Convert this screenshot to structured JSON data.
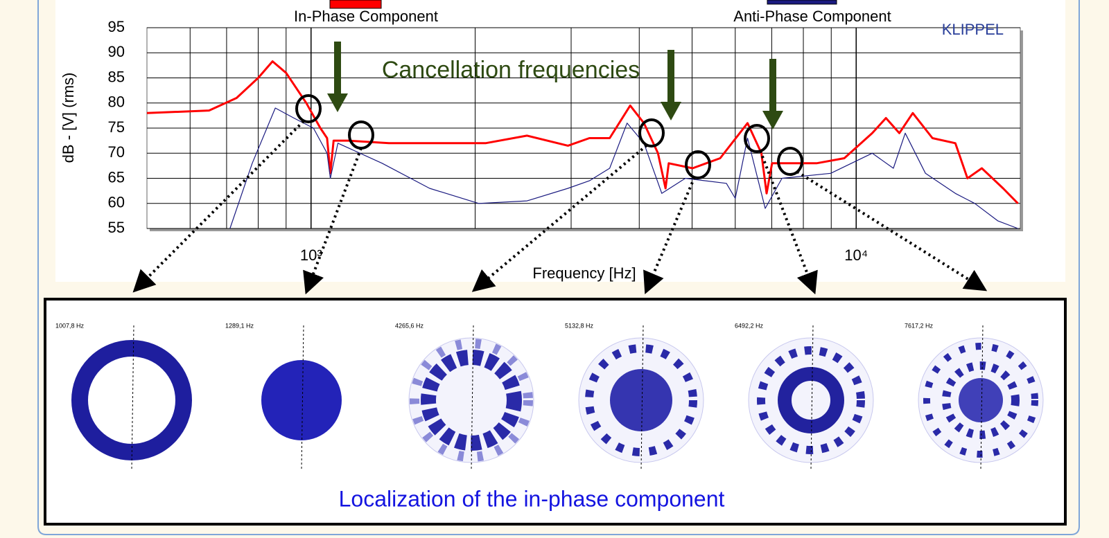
{
  "chart_data": {
    "type": "line",
    "y_label": "dB - [V]  (rms)",
    "x_label": "Frequency [Hz]",
    "log_x": true,
    "grid": true,
    "xlim": [
      500,
      20000
    ],
    "ylim": [
      55,
      95
    ],
    "xticks": [
      {
        "value": 1000,
        "label": "10³"
      },
      {
        "value": 10000,
        "label": "10⁴"
      }
    ],
    "yticks": [
      55,
      60,
      65,
      70,
      75,
      80,
      85,
      90,
      95
    ],
    "annotations": [
      "Cancellation frequencies",
      "KLIPPEL"
    ],
    "pattern_labels": [
      "1007,8 Hz",
      "1289,1 Hz",
      "4265,6 Hz",
      "5132,8 Hz",
      "6492,2 Hz",
      "7617,2 Hz"
    ],
    "caption": "Localization of the in-phase component",
    "series": [
      {
        "name": "In-Phase Component",
        "color": "#ff0000",
        "x": [
          500,
          650,
          730,
          800,
          850,
          900,
          980,
          1040,
          1070,
          1085,
          1100,
          1170,
          1390,
          2090,
          2490,
          2960,
          3240,
          3530,
          3850,
          4080,
          4330,
          4470,
          4530,
          5010,
          5630,
          6320,
          6700,
          6850,
          7010,
          8460,
          9510,
          10700,
          11340,
          12000,
          12700,
          13800,
          15200,
          16000,
          17000,
          18600,
          19800
        ],
        "values": [
          78,
          78.5,
          81,
          85,
          88.3,
          86,
          80,
          75,
          73,
          66,
          72.5,
          72.5,
          72,
          72,
          73.5,
          71.5,
          73,
          73,
          79.5,
          76,
          70,
          63,
          68,
          67,
          69,
          76,
          70,
          62,
          68,
          68,
          69,
          74,
          77,
          74,
          78,
          73,
          72,
          65,
          67,
          63,
          60
        ]
      },
      {
        "name": "Anti-Phase Component",
        "color": "#1a1a80",
        "x": [
          710,
          780,
          860,
          930,
          1010,
          1070,
          1085,
          1120,
          1350,
          1650,
          2030,
          2490,
          2960,
          3240,
          3530,
          3800,
          4080,
          4400,
          4860,
          5780,
          6000,
          6320,
          6810,
          7310,
          8980,
          10700,
          11700,
          12300,
          13400,
          15200,
          16500,
          18200,
          19800
        ],
        "values": [
          55,
          68,
          79,
          77,
          75,
          70,
          65,
          72,
          68,
          63,
          60,
          60.5,
          63,
          64.5,
          67,
          76,
          72,
          62,
          65,
          64,
          61,
          73,
          59,
          65,
          66,
          70,
          67,
          74,
          66,
          62,
          60,
          56.5,
          55
        ]
      }
    ]
  }
}
